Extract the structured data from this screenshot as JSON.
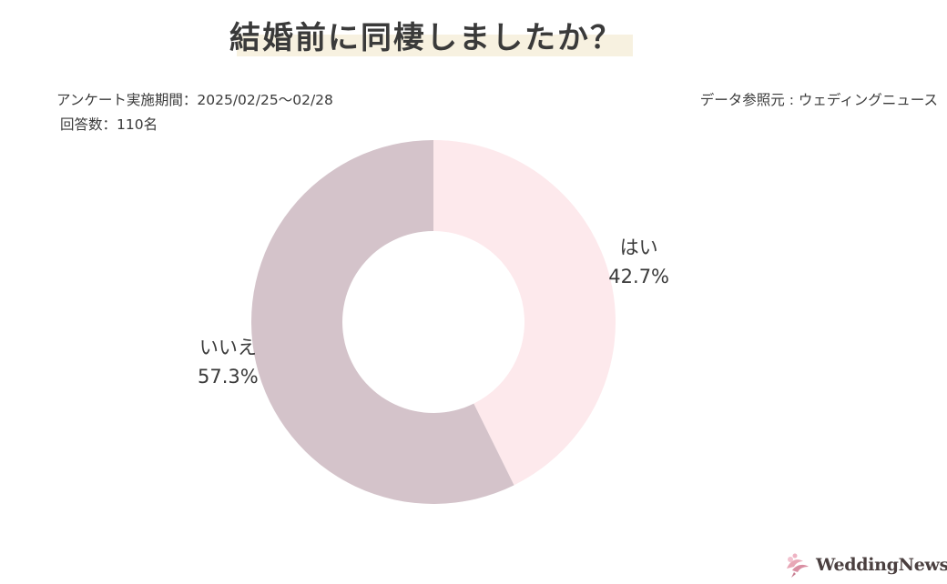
{
  "title": "結婚前に同棲しましたか？",
  "survey": {
    "period": "アンケート実施期間：2025/02/25〜02/28",
    "respondents": "回答数：110名"
  },
  "source": "データ参照元 : ウェディングニュース",
  "logo": {
    "text": "WeddingNews",
    "icon": "dove-flower-logo-icon"
  },
  "colors": {
    "yes": "#fde9ec",
    "no": "#d4c3ca",
    "highlight": "#f7f1e0",
    "text": "#3a3a3a"
  },
  "chart_data": {
    "type": "pie",
    "donut": true,
    "title": "結婚前に同棲しましたか？",
    "slices": [
      {
        "label": "はい",
        "value": 42.7,
        "display": "42.7%"
      },
      {
        "label": "いいえ",
        "value": 57.3,
        "display": "57.3%"
      }
    ],
    "start": "12 o'clock",
    "direction": "clockwise"
  }
}
